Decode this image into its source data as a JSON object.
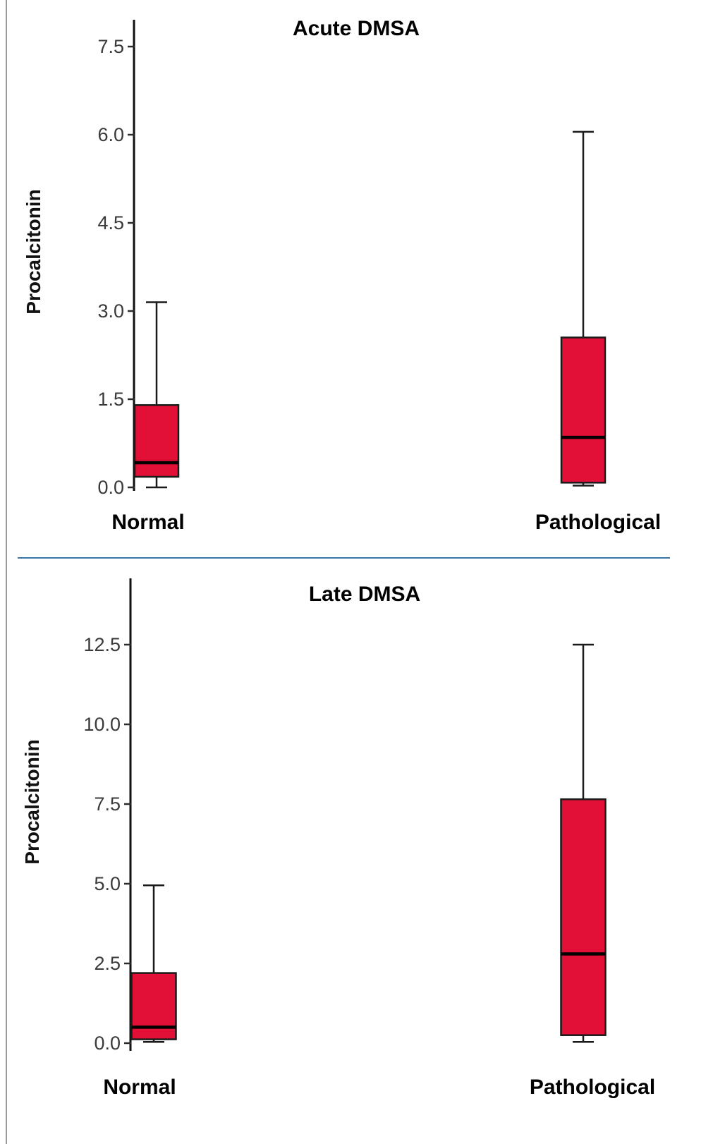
{
  "colors": {
    "box_fill": "#e20f37",
    "divider": "#3a76a8",
    "left_edge_line": "#9a9a9a"
  },
  "chart_data": [
    {
      "type": "box",
      "title": "Acute DMSA",
      "ylabel": "Procalcitonin",
      "xlabel": "",
      "categories": [
        "Normal",
        "Pathological"
      ],
      "yticks": [
        0.0,
        1.5,
        3.0,
        4.5,
        6.0,
        7.5
      ],
      "ytick_labels": [
        "0.0",
        "1.5",
        "3.0",
        "4.5",
        "6.0",
        "7.5"
      ],
      "ylim": [
        0,
        8.0
      ],
      "grid": false,
      "legend": false,
      "series": [
        {
          "category": "Normal",
          "whisker_low": 0.0,
          "q1": 0.18,
          "median": 0.42,
          "q3": 1.4,
          "whisker_high": 3.15
        },
        {
          "category": "Pathological",
          "whisker_low": 0.03,
          "q1": 0.08,
          "median": 0.85,
          "q3": 2.55,
          "whisker_high": 6.05
        }
      ]
    },
    {
      "type": "box",
      "title": "Late DMSA",
      "ylabel": "Procalcitonin",
      "xlabel": "",
      "categories": [
        "Normal",
        "Pathological"
      ],
      "yticks": [
        0.0,
        2.5,
        5.0,
        7.5,
        10.0,
        12.5
      ],
      "ytick_labels": [
        "0.0",
        "2.5",
        "5.0",
        "7.5",
        "10.0",
        "12.5"
      ],
      "ylim": [
        0,
        13.5
      ],
      "grid": false,
      "legend": false,
      "series": [
        {
          "category": "Normal",
          "whisker_low": 0.04,
          "q1": 0.12,
          "median": 0.5,
          "q3": 2.2,
          "whisker_high": 4.95
        },
        {
          "category": "Pathological",
          "whisker_low": 0.04,
          "q1": 0.25,
          "median": 2.8,
          "q3": 7.65,
          "whisker_high": 12.5
        }
      ]
    }
  ]
}
